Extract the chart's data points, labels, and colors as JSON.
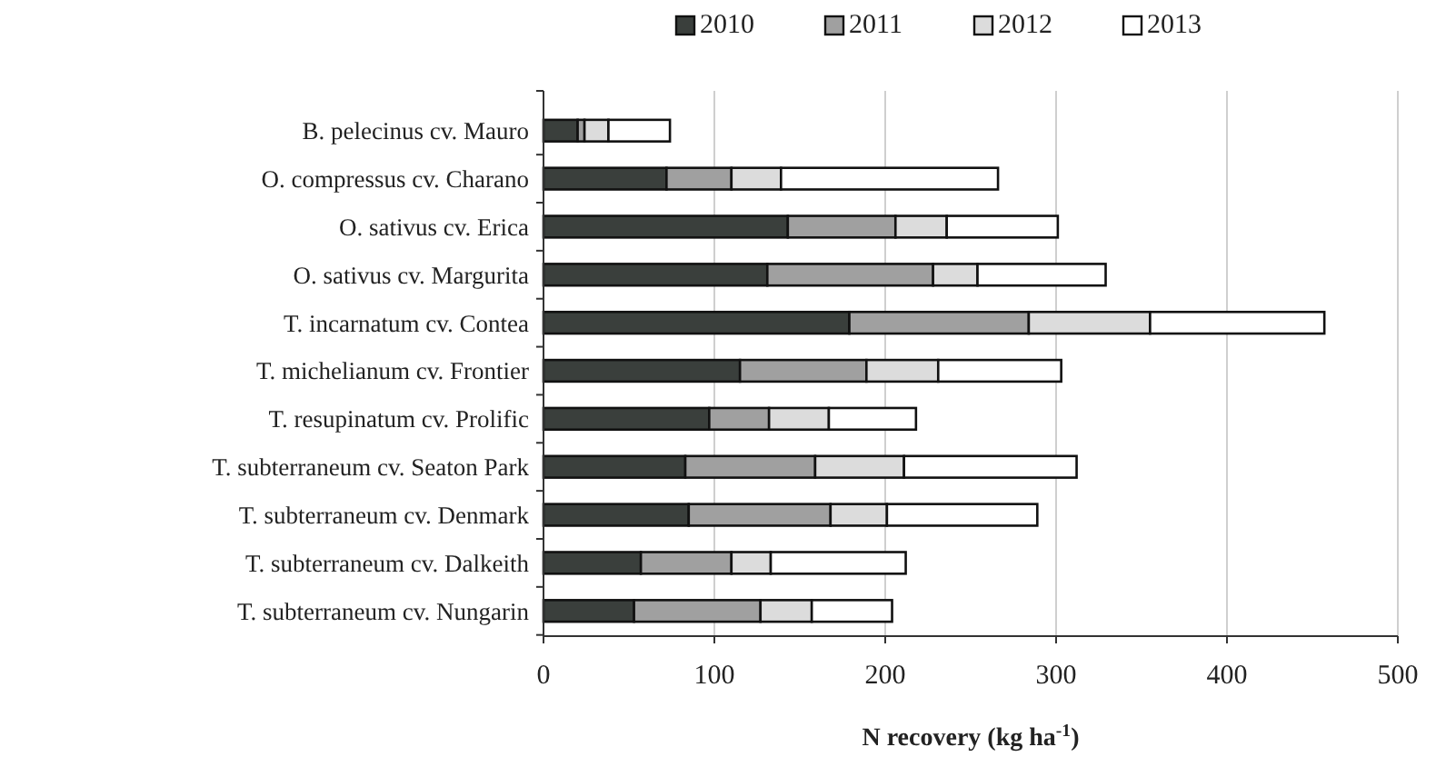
{
  "chart_data": {
    "type": "bar",
    "orientation": "horizontal",
    "stacked": true,
    "xlabel": "N recovery (kg ha$^{-1}$)",
    "categories": [
      "B. pelecinus cv. Mauro",
      "O. compressus cv. Charano",
      "O. sativus cv. Erica",
      "O. sativus cv. Margurita",
      "T. incarnatum cv. Contea",
      "T. michelianum cv. Frontier",
      "T. resupinatum cv. Prolific",
      "T. subterraneum cv. Seaton Park",
      "T. subterraneum cv. Denmark",
      "T. subterraneum cv. Dalkeith",
      "T. subterraneum cv. Nungarin"
    ],
    "series": [
      {
        "name": "2010",
        "color": "#3a3f3c",
        "values": [
          20,
          72,
          143,
          131,
          179,
          115,
          97,
          83,
          85,
          57,
          53
        ]
      },
      {
        "name": "2011",
        "color": "#a0a0a0",
        "values": [
          4,
          38,
          63,
          97,
          105,
          74,
          35,
          76,
          83,
          53,
          74
        ]
      },
      {
        "name": "2012",
        "color": "#dcdcdc",
        "values": [
          14,
          29,
          30,
          26,
          71,
          42,
          35,
          52,
          33,
          23,
          30
        ]
      },
      {
        "name": "2013",
        "color": "#ffffff",
        "values": [
          36,
          127,
          65,
          75,
          102,
          72,
          51,
          101,
          88,
          79,
          47
        ]
      }
    ],
    "xlim": [
      0,
      500
    ],
    "xticks": [
      0,
      100,
      200,
      300,
      400,
      500
    ],
    "grid": "x",
    "legend": "top"
  }
}
